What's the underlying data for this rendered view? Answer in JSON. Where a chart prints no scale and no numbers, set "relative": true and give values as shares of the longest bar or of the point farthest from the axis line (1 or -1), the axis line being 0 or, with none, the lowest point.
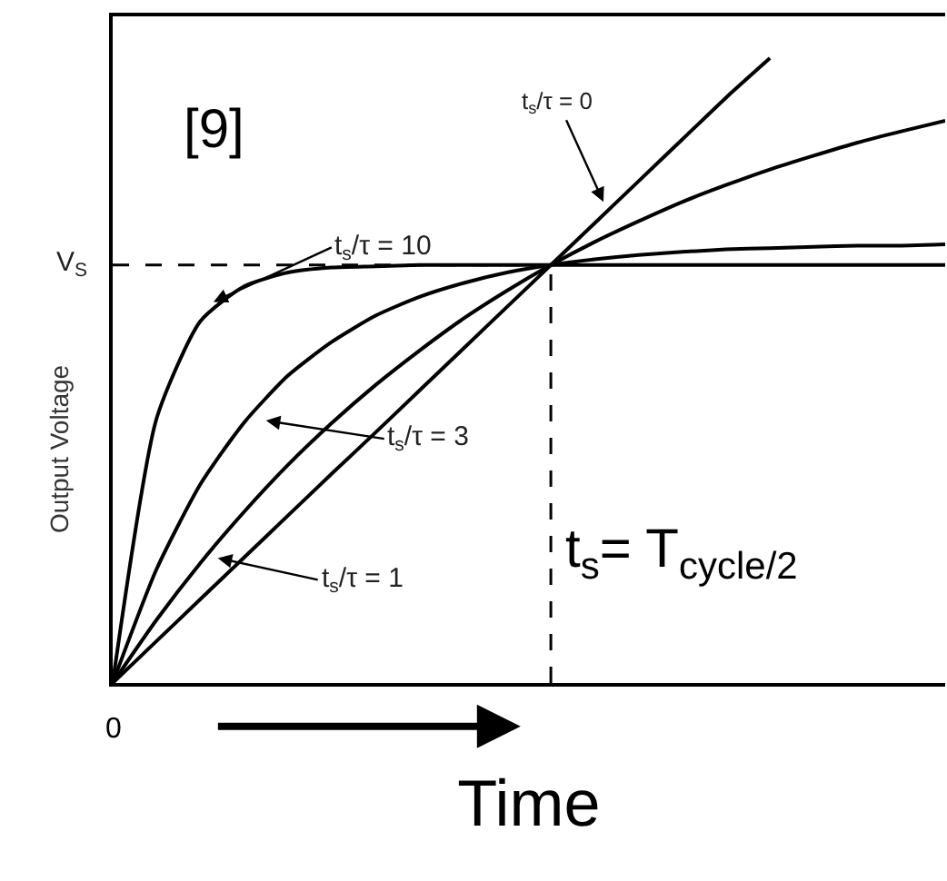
{
  "chart_data": {
    "type": "line",
    "relative": true,
    "xlabel": "Time",
    "ylabel": "Output Voltage",
    "categories": [
      null,
      null,
      null,
      null,
      null,
      null,
      null,
      null,
      null,
      null,
      null,
      null,
      null,
      null,
      null,
      null,
      null,
      null,
      null,
      null
    ],
    "marker": "none",
    "line_style": "solid",
    "series": [
      {
        "color": "#000000",
        "values": [
          0,
          0.067,
          0.134,
          0.201,
          0.268,
          0.335,
          0.401,
          0.468,
          0.535,
          0.602,
          0.669,
          0.736,
          0.803,
          0.87,
          0.937,
          1.0,
          null,
          null,
          null,
          null
        ]
      },
      {
        "color": "#000000",
        "values": [
          0,
          0.101,
          0.192,
          0.274,
          0.349,
          0.416,
          0.477,
          0.532,
          0.583,
          0.628,
          0.669,
          0.706,
          0.739,
          0.77,
          0.797,
          0.822,
          0.844,
          0.865,
          0.883,
          0.9
        ]
      },
      {
        "color": "#000000",
        "values": [
          0,
          0.182,
          0.318,
          0.417,
          0.492,
          0.546,
          0.588,
          0.618,
          0.64,
          0.657,
          0.669,
          0.678,
          0.685,
          0.69,
          0.694,
          0.696,
          0.698,
          0.7,
          0.7,
          0.702
        ]
      },
      {
        "color": "#000000",
        "values": [
          0,
          0.423,
          0.579,
          0.635,
          0.657,
          0.665,
          0.667,
          0.669,
          0.669,
          0.669,
          0.669,
          0.669,
          0.669,
          0.669,
          0.669,
          0.669,
          0.669,
          0.669,
          0.669,
          0.669
        ]
      }
    ],
    "ref_lines": [
      {
        "axis": "y",
        "value": 0.669,
        "label": "V$_{S}$",
        "line_style": "dashed",
        "color": "#000000"
      }
    ],
    "annotations": [
      "[9]",
      "t$_{s}$/τ = 0",
      "t$_{s}$/τ = 10",
      "t$_{s}$/τ = 3",
      "t$_{s}$/τ = 1",
      "0",
      "t$_{s}$= T$_{cycle/2}$"
    ]
  }
}
